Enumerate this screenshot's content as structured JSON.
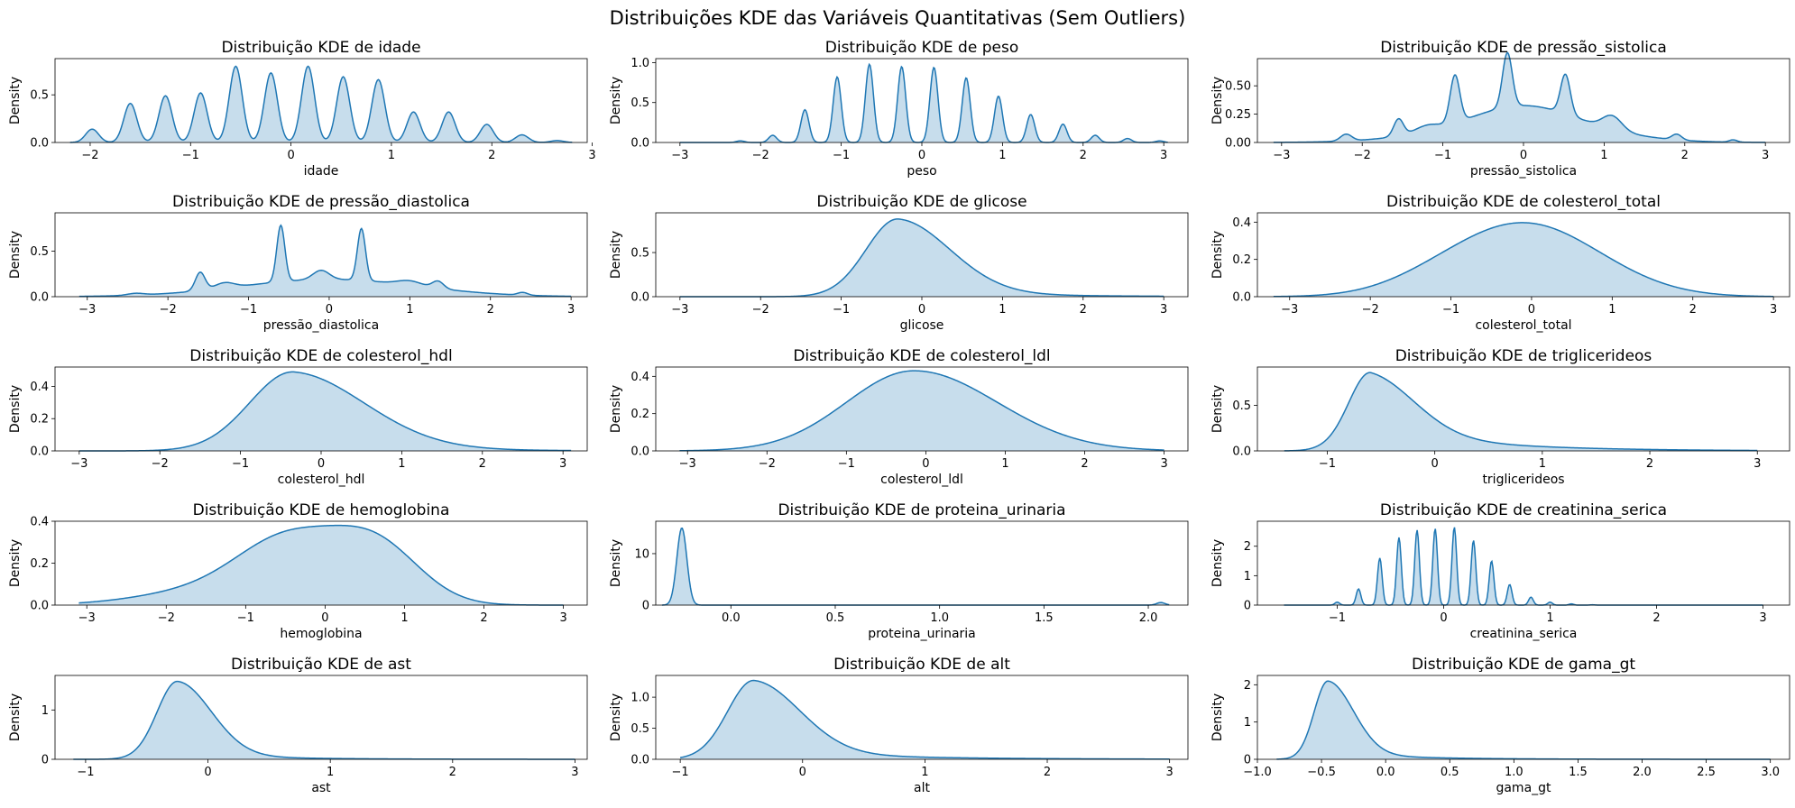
{
  "figure": {
    "suptitle": "Distribuições KDE das Variáveis Quantitativas (Sem Outliers)"
  },
  "colors": {
    "line": "#1f77b4",
    "fill": "#1f77b4",
    "fill_opacity": 0.25
  },
  "chart_data": [
    {
      "type": "area",
      "title": "Distribuição KDE de idade",
      "xlabel": "idade",
      "ylabel": "Density",
      "xlim": [
        -2.35,
        2.95
      ],
      "ylim": [
        0,
        0.88
      ],
      "xticks": [
        -2,
        -1,
        0,
        1,
        2,
        3
      ],
      "yticks": [
        0.0,
        0.5
      ],
      "ytick_labels": [
        "0.0",
        "0.5"
      ],
      "curve": {
        "kind": "spikes",
        "sigma": 0.065,
        "range": [
          -2.2,
          2.8
        ],
        "peaks": [
          [
            -1.98,
            0.14
          ],
          [
            -1.6,
            0.41
          ],
          [
            -1.25,
            0.49
          ],
          [
            -0.9,
            0.52
          ],
          [
            -0.55,
            0.8
          ],
          [
            -0.2,
            0.73
          ],
          [
            0.17,
            0.8
          ],
          [
            0.52,
            0.69
          ],
          [
            0.87,
            0.66
          ],
          [
            1.22,
            0.32
          ],
          [
            1.57,
            0.32
          ],
          [
            1.95,
            0.19
          ],
          [
            2.3,
            0.08
          ],
          [
            2.65,
            0.02
          ]
        ]
      }
    },
    {
      "type": "area",
      "title": "Distribuição KDE de peso",
      "xlabel": "peso",
      "ylabel": "Density",
      "xlim": [
        -3.3,
        3.3
      ],
      "ylim": [
        0,
        1.05
      ],
      "xticks": [
        -3,
        -2,
        -1,
        0,
        1,
        2,
        3
      ],
      "yticks": [
        0.0,
        0.5,
        1.0
      ],
      "ytick_labels": [
        "0.0",
        "0.5",
        "1.0"
      ],
      "curve": {
        "kind": "spikes",
        "sigma": 0.05,
        "range": [
          -3.0,
          3.05
        ],
        "peaks": [
          [
            -2.25,
            0.02
          ],
          [
            -1.85,
            0.09
          ],
          [
            -1.45,
            0.41
          ],
          [
            -1.05,
            0.82
          ],
          [
            -0.65,
            0.98
          ],
          [
            -0.25,
            0.95
          ],
          [
            0.15,
            0.94
          ],
          [
            0.55,
            0.81
          ],
          [
            0.95,
            0.58
          ],
          [
            1.35,
            0.35
          ],
          [
            1.75,
            0.23
          ],
          [
            2.15,
            0.09
          ],
          [
            2.55,
            0.05
          ],
          [
            2.95,
            0.02
          ]
        ]
      }
    },
    {
      "type": "area",
      "title": "Distribuição KDE de pressão_sistolica",
      "xlabel": "pressão_sistolica",
      "ylabel": "Density",
      "xlim": [
        -3.3,
        3.3
      ],
      "ylim": [
        0,
        0.74
      ],
      "xticks": [
        -3,
        -2,
        -1,
        0,
        1,
        2,
        3
      ],
      "yticks": [
        0.0,
        0.25,
        0.5
      ],
      "ytick_labels": [
        "0.00",
        "0.25",
        "0.50"
      ],
      "curve": {
        "kind": "mixture",
        "range": [
          -3.1,
          3.0
        ],
        "comps": [
          [
            0.0,
            0.55,
            0.12
          ],
          [
            -0.2,
            0.9,
            0.16
          ],
          [
            0.5,
            0.8,
            0.06
          ],
          [
            -0.85,
            0.06,
            0.42
          ],
          [
            -0.2,
            0.06,
            0.48
          ],
          [
            0.52,
            0.06,
            0.35
          ],
          [
            -1.55,
            0.06,
            0.15
          ],
          [
            -2.2,
            0.07,
            0.06
          ],
          [
            1.9,
            0.06,
            0.05
          ],
          [
            2.6,
            0.05,
            0.02
          ],
          [
            1.1,
            0.12,
            0.12
          ],
          [
            -1.2,
            0.15,
            0.05
          ]
        ]
      }
    },
    {
      "type": "area",
      "title": "Distribuição KDE de pressão_diastolica",
      "xlabel": "pressão_diastolica",
      "ylabel": "Density",
      "xlim": [
        -3.4,
        3.2
      ],
      "ylim": [
        0,
        0.92
      ],
      "xticks": [
        -3,
        -2,
        -1,
        0,
        1,
        2,
        3
      ],
      "yticks": [
        0.0,
        0.5
      ],
      "ytick_labels": [
        "0.0",
        "0.5"
      ],
      "curve": {
        "kind": "mixture",
        "range": [
          -3.1,
          3.0
        ],
        "comps": [
          [
            0.0,
            1.1,
            0.19
          ],
          [
            -0.6,
            0.05,
            0.62
          ],
          [
            0.4,
            0.05,
            0.57
          ],
          [
            -1.6,
            0.06,
            0.2
          ],
          [
            -1.3,
            0.12,
            0.06
          ],
          [
            -0.1,
            0.1,
            0.1
          ],
          [
            1.0,
            0.15,
            0.05
          ],
          [
            1.35,
            0.07,
            0.08
          ],
          [
            2.4,
            0.06,
            0.03
          ],
          [
            -2.4,
            0.1,
            0.02
          ]
        ]
      }
    },
    {
      "type": "area",
      "title": "Distribuição KDE de glicose",
      "xlabel": "glicose",
      "ylabel": "Density",
      "xlim": [
        -3.3,
        3.3
      ],
      "ylim": [
        0,
        0.95
      ],
      "xticks": [
        -3,
        -2,
        -1,
        0,
        1,
        2,
        3
      ],
      "yticks": [
        0.0,
        0.5
      ],
      "ytick_labels": [
        "0.0",
        "0.5"
      ],
      "curve": {
        "kind": "skew",
        "range": [
          -3.0,
          3.0
        ],
        "mode": -0.3,
        "peak": 0.88,
        "left": 0.4,
        "right": 0.65,
        "tail_amp": 0.07,
        "tail_scale": 1.3
      }
    },
    {
      "type": "area",
      "title": "Distribuição KDE de colesterol_total",
      "xlabel": "colesterol_total",
      "ylabel": "Density",
      "xlim": [
        -3.4,
        3.2
      ],
      "ylim": [
        0,
        0.45
      ],
      "xticks": [
        -3,
        -2,
        -1,
        0,
        1,
        2,
        3
      ],
      "yticks": [
        0.0,
        0.2,
        0.4
      ],
      "ytick_labels": [
        "0.0",
        "0.2",
        "0.4"
      ],
      "curve": {
        "kind": "mixture",
        "range": [
          -3.2,
          3.0
        ],
        "comps": [
          [
            -0.25,
            0.85,
            0.33
          ],
          [
            0.6,
            0.8,
            0.1
          ],
          [
            -1.3,
            0.6,
            0.03
          ]
        ]
      }
    },
    {
      "type": "area",
      "title": "Distribuição KDE de colesterol_hdl",
      "xlabel": "colesterol_hdl",
      "ylabel": "Density",
      "xlim": [
        -3.3,
        3.3
      ],
      "ylim": [
        0,
        0.52
      ],
      "xticks": [
        -3,
        -2,
        -1,
        0,
        1,
        2,
        3
      ],
      "yticks": [
        0.0,
        0.2,
        0.4
      ],
      "ytick_labels": [
        "0.0",
        "0.2",
        "0.4"
      ],
      "curve": {
        "kind": "skew",
        "range": [
          -3.0,
          3.1
        ],
        "mode": -0.35,
        "peak": 0.49,
        "left": 0.55,
        "right": 0.9,
        "tail_amp": 0.04,
        "tail_scale": 1.2
      }
    },
    {
      "type": "area",
      "title": "Distribuição KDE de colesterol_ldl",
      "xlabel": "colesterol_ldl",
      "ylabel": "Density",
      "xlim": [
        -3.4,
        3.3
      ],
      "ylim": [
        0,
        0.45
      ],
      "xticks": [
        -3,
        -2,
        -1,
        0,
        1,
        2,
        3
      ],
      "yticks": [
        0.0,
        0.2,
        0.4
      ],
      "ytick_labels": [
        "0.0",
        "0.2",
        "0.4"
      ],
      "curve": {
        "kind": "skew",
        "range": [
          -3.1,
          3.0
        ],
        "mode": -0.15,
        "peak": 0.43,
        "left": 0.85,
        "right": 1.05,
        "tail_amp": 0.0,
        "tail_scale": 1.0
      }
    },
    {
      "type": "area",
      "title": "Distribuição KDE de triglicerideos",
      "xlabel": "triglicerideos",
      "ylabel": "Density",
      "xlim": [
        -1.65,
        3.3
      ],
      "ylim": [
        0,
        0.92
      ],
      "xticks": [
        -1,
        0,
        1,
        2,
        3
      ],
      "yticks": [
        0.0,
        0.5
      ],
      "ytick_labels": [
        "0.0",
        "0.5"
      ],
      "curve": {
        "kind": "skew",
        "range": [
          -1.4,
          3.0
        ],
        "mode": -0.6,
        "peak": 0.86,
        "left": 0.22,
        "right": 0.42,
        "tail_amp": 0.28,
        "tail_scale": 0.9
      }
    },
    {
      "type": "area",
      "title": "Distribuição KDE de hemoglobina",
      "xlabel": "hemoglobina",
      "ylabel": "Density",
      "xlim": [
        -3.4,
        3.3
      ],
      "ylim": [
        0,
        0.4
      ],
      "xticks": [
        -3,
        -2,
        -1,
        0,
        1,
        2,
        3
      ],
      "yticks": [
        0.0,
        0.2,
        0.4
      ],
      "ytick_labels": [
        "0.0",
        "0.2",
        "0.4"
      ],
      "curve": {
        "kind": "mixture",
        "range": [
          -3.1,
          3.0
        ],
        "comps": [
          [
            -0.45,
            0.65,
            0.3
          ],
          [
            0.65,
            0.55,
            0.27
          ],
          [
            -1.6,
            0.8,
            0.06
          ]
        ]
      }
    },
    {
      "type": "area",
      "title": "Distribuição KDE de proteina_urinaria",
      "xlabel": "proteina_urinaria",
      "ylabel": "Density",
      "xlim": [
        -0.36,
        2.19
      ],
      "ylim": [
        0,
        16.3
      ],
      "xticks": [
        0.0,
        0.5,
        1.0,
        1.5,
        2.0
      ],
      "xtick_labels": [
        "0.0",
        "0.5",
        "1.0",
        "1.5",
        "2.0"
      ],
      "yticks": [
        0,
        10
      ],
      "ytick_labels": [
        "0",
        "10"
      ],
      "curve": {
        "kind": "mixture",
        "range": [
          -0.33,
          2.1
        ],
        "comps": [
          [
            -0.235,
            0.024,
            15.0
          ],
          [
            2.06,
            0.02,
            0.5
          ]
        ]
      }
    },
    {
      "type": "area",
      "title": "Distribuição KDE de creatinina_serica",
      "xlabel": "creatinina_serica",
      "ylabel": "Density",
      "xlim": [
        -1.75,
        3.25
      ],
      "ylim": [
        0,
        2.85
      ],
      "xticks": [
        -1,
        0,
        1,
        2,
        3
      ],
      "yticks": [
        0,
        1,
        2
      ],
      "ytick_labels": [
        "0",
        "1",
        "2"
      ],
      "curve": {
        "kind": "spikes",
        "sigma": 0.022,
        "range": [
          -1.5,
          3.0
        ],
        "peaks": [
          [
            -1.0,
            0.1
          ],
          [
            -0.8,
            0.55
          ],
          [
            -0.6,
            1.6
          ],
          [
            -0.42,
            2.3
          ],
          [
            -0.25,
            2.55
          ],
          [
            -0.08,
            2.6
          ],
          [
            0.1,
            2.65
          ],
          [
            0.28,
            2.2
          ],
          [
            0.45,
            1.5
          ],
          [
            0.62,
            0.7
          ],
          [
            0.82,
            0.27
          ],
          [
            1.0,
            0.1
          ],
          [
            1.2,
            0.04
          ],
          [
            1.4,
            0.01
          ]
        ]
      }
    },
    {
      "type": "area",
      "title": "Distribuição KDE de ast",
      "xlabel": "ast",
      "ylabel": "Density",
      "xlim": [
        -1.25,
        3.1
      ],
      "ylim": [
        0,
        1.7
      ],
      "xticks": [
        -1,
        0,
        1,
        2,
        3
      ],
      "yticks": [
        0,
        1
      ],
      "ytick_labels": [
        "0",
        "1"
      ],
      "curve": {
        "kind": "skew",
        "range": [
          -1.1,
          3.0
        ],
        "mode": -0.25,
        "peak": 1.58,
        "left": 0.17,
        "right": 0.28,
        "tail_amp": 0.14,
        "tail_scale": 0.6
      }
    },
    {
      "type": "area",
      "title": "Distribuição KDE de alt",
      "xlabel": "alt",
      "ylabel": "Density",
      "xlim": [
        -1.2,
        3.15
      ],
      "ylim": [
        0,
        1.35
      ],
      "xticks": [
        -1,
        0,
        1,
        2,
        3
      ],
      "yticks": [
        0.0,
        0.5,
        1.0
      ],
      "ytick_labels": [
        "0.0",
        "0.5",
        "1.0"
      ],
      "curve": {
        "kind": "skew",
        "range": [
          -1.0,
          3.0
        ],
        "mode": -0.4,
        "peak": 1.27,
        "left": 0.22,
        "right": 0.38,
        "tail_amp": 0.16,
        "tail_scale": 0.9
      }
    },
    {
      "type": "area",
      "title": "Distribuição KDE de gama_gt",
      "xlabel": "gama_gt",
      "ylabel": "Density",
      "xlim": [
        -1.0,
        3.15
      ],
      "ylim": [
        0,
        2.25
      ],
      "xticks": [
        -1.0,
        -0.5,
        0.0,
        0.5,
        1.0,
        1.5,
        2.0,
        2.5,
        3.0
      ],
      "xtick_labels": [
        "−1.0",
        "−0.5",
        "0.0",
        "0.5",
        "1.0",
        "1.5",
        "2.0",
        "2.5",
        "3.0"
      ],
      "yticks": [
        0,
        1,
        2
      ],
      "ytick_labels": [
        "0",
        "1",
        "2"
      ],
      "curve": {
        "kind": "skew",
        "range": [
          -0.85,
          3.0
        ],
        "mode": -0.45,
        "peak": 2.1,
        "left": 0.11,
        "right": 0.2,
        "tail_amp": 0.2,
        "tail_scale": 0.55
      }
    }
  ]
}
